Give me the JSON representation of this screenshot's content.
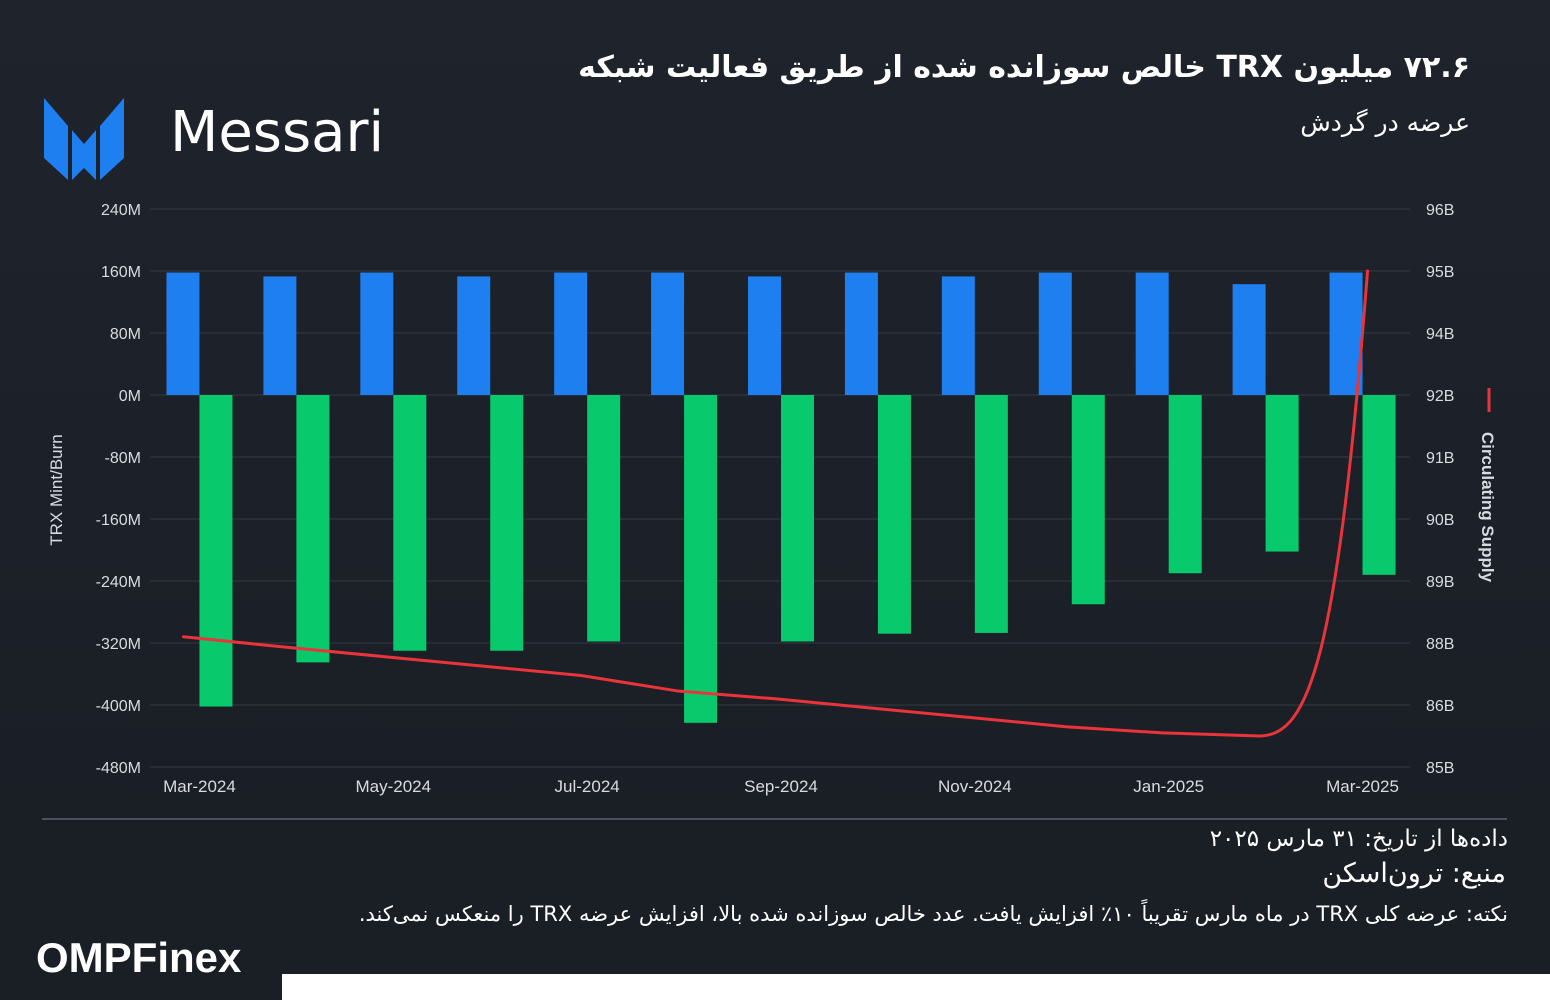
{
  "header": {
    "logo_text": "Messari",
    "title": "۷۲.۶ میلیون TRX خالص سوزانده شده از طریق فعالیت شبکه",
    "subtitle": "عرضه در گردش"
  },
  "chart_data": {
    "type": "bar",
    "categories": [
      "Mar-2024",
      "Apr-2024",
      "May-2024",
      "Jun-2024",
      "Jul-2024",
      "Aug-2024",
      "Sep-2024",
      "Oct-2024",
      "Nov-2024",
      "Dec-2024",
      "Jan-2025",
      "Feb-2025",
      "Mar-2025"
    ],
    "x_tick_labels": [
      "Mar-2024",
      "May-2024",
      "Jul-2024",
      "Sep-2024",
      "Nov-2024",
      "Jan-2025",
      "Mar-2025"
    ],
    "series": [
      {
        "type": "bar",
        "axis": "left",
        "color": "#1e7ff0",
        "values": [
          158,
          153,
          158,
          153,
          158,
          158,
          153,
          158,
          153,
          158,
          158,
          143,
          158
        ]
      },
      {
        "type": "bar",
        "axis": "left",
        "color": "#08ca6d",
        "values": [
          -402,
          -345,
          -330,
          -330,
          -318,
          -423,
          -318,
          -308,
          -307,
          -270,
          -230,
          -202,
          -232
        ]
      },
      {
        "type": "line",
        "axis": "right",
        "name": "Circulating Supply",
        "color": "#e8343a",
        "values": [
          88.1,
          87.85,
          87.55,
          87.25,
          86.95,
          86.45,
          86.2,
          85.95,
          85.8,
          85.65,
          85.55,
          85.5,
          95.0
        ]
      }
    ],
    "ylabel": "TRX Mint/Burn",
    "y2label": "Circulating Supply",
    "left_axis": {
      "ticks": [
        240,
        160,
        80,
        0,
        -80,
        -160,
        -240,
        -320,
        -400,
        -480
      ],
      "labels": [
        "240M",
        "160M",
        "80M",
        "0M",
        "-80M",
        "-160M",
        "-240M",
        "-320M",
        "-400M",
        "-480M"
      ],
      "ylim": [
        -480,
        240
      ]
    },
    "right_axis": {
      "labels": [
        "96B",
        "95B",
        "94B",
        "92B",
        "91B",
        "90B",
        "89B",
        "88B",
        "86B",
        "85B"
      ]
    },
    "grid": true,
    "legend_position": "right"
  },
  "footer": {
    "date_text": "داده‌ها از تاریخ: ۳۱ مارس ۲۰۲۵",
    "source_text": "منبع: ترون‌اسکن",
    "note_text": "نکته: عرضه کلی TRX در ماه مارس تقریباً ۱۰٪ افزایش یافت. عدد خالص سوزانده شده بالا، افزایش عرضه TRX را منعکس نمی‌کند.",
    "brand": "OMPFinex"
  },
  "colors": {
    "background": "#1f232b",
    "mint": "#1e7ff0",
    "burn": "#08ca6d",
    "supply_line": "#e8343a",
    "text": "#ffffff",
    "axis_text": "#d8dbe0"
  }
}
